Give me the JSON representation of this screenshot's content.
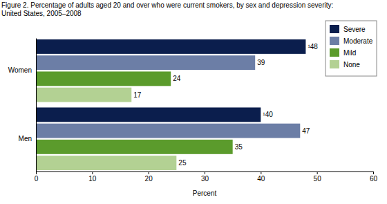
{
  "chart_data": {
    "type": "bar",
    "orientation": "horizontal",
    "title": [
      "Figure 2. Percentage of adults aged 20 and over who were current smokers, by sex and depression severity:",
      "United States, 2005–2008"
    ],
    "x_label": "Percent",
    "categories": [
      "Women",
      "Men"
    ],
    "series": [
      {
        "name": "Severe",
        "color": "#0b1e4d",
        "values": [
          48,
          40
        ],
        "value_labels": [
          "¹48",
          "¹40"
        ]
      },
      {
        "name": "Moderate",
        "color": "#6c7ea6",
        "values": [
          39,
          47
        ]
      },
      {
        "name": "Mild",
        "color": "#5b9b2c",
        "values": [
          24,
          35
        ]
      },
      {
        "name": "None",
        "color": "#b3d193",
        "values": [
          17,
          25
        ]
      }
    ],
    "xlim": [
      0,
      60
    ],
    "xticks": [
      0,
      10,
      20,
      30,
      40,
      50,
      60
    ],
    "grid": false,
    "legend": "upper right",
    "data_labels": true
  }
}
